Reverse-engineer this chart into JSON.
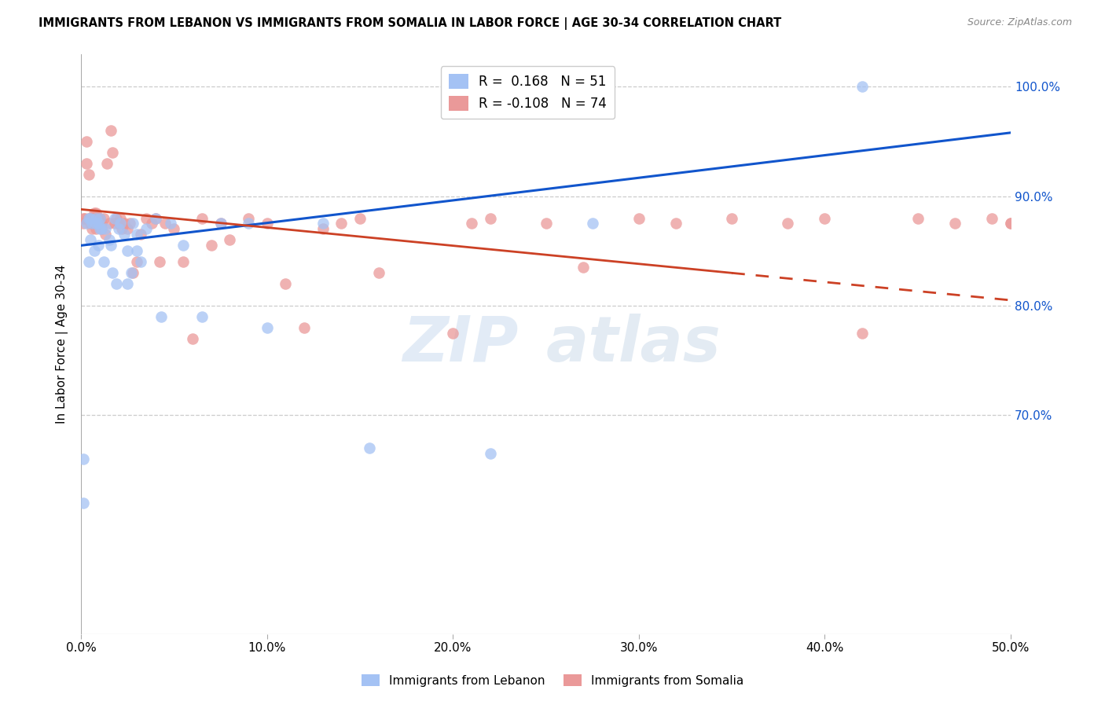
{
  "title": "IMMIGRANTS FROM LEBANON VS IMMIGRANTS FROM SOMALIA IN LABOR FORCE | AGE 30-34 CORRELATION CHART",
  "source": "Source: ZipAtlas.com",
  "ylabel": "In Labor Force | Age 30-34",
  "xlim": [
    0.0,
    0.5
  ],
  "ylim": [
    0.5,
    1.03
  ],
  "yticks": [
    0.6,
    0.7,
    0.8,
    0.9,
    1.0
  ],
  "ytick_labels": [
    "",
    "",
    "80.0%",
    "90.0%",
    "100.0%"
  ],
  "ytick_labels_right": [
    "",
    "70.0%",
    "80.0%",
    "90.0%",
    "100.0%"
  ],
  "xticks": [
    0.0,
    0.1,
    0.2,
    0.3,
    0.4,
    0.5
  ],
  "xtick_labels": [
    "0.0%",
    "10.0%",
    "20.0%",
    "30.0%",
    "40.0%",
    "50.0%"
  ],
  "legend_blue_r": "0.168",
  "legend_blue_n": "51",
  "legend_pink_r": "-0.108",
  "legend_pink_n": "74",
  "blue_color": "#a4c2f4",
  "pink_color": "#ea9999",
  "trend_blue_color": "#1155cc",
  "trend_pink_color": "#cc4125",
  "grid_color": "#cccccc",
  "watermark_zip": "ZIP",
  "watermark_atlas": "atlas",
  "blue_x": [
    0.001,
    0.001,
    0.003,
    0.004,
    0.004,
    0.005,
    0.005,
    0.006,
    0.007,
    0.008,
    0.008,
    0.009,
    0.009,
    0.01,
    0.01,
    0.011,
    0.012,
    0.013,
    0.015,
    0.016,
    0.017,
    0.018,
    0.019,
    0.02,
    0.021,
    0.023,
    0.025,
    0.025,
    0.027,
    0.028,
    0.03,
    0.03,
    0.032,
    0.035,
    0.04,
    0.043,
    0.048,
    0.055,
    0.065,
    0.075,
    0.09,
    0.1,
    0.13,
    0.155,
    0.22,
    0.275,
    0.42
  ],
  "blue_y": [
    0.62,
    0.66,
    0.875,
    0.84,
    0.88,
    0.86,
    0.88,
    0.875,
    0.85,
    0.875,
    0.88,
    0.855,
    0.875,
    0.87,
    0.88,
    0.87,
    0.84,
    0.87,
    0.86,
    0.855,
    0.83,
    0.88,
    0.82,
    0.87,
    0.875,
    0.865,
    0.85,
    0.82,
    0.83,
    0.875,
    0.85,
    0.865,
    0.84,
    0.87,
    0.88,
    0.79,
    0.875,
    0.855,
    0.79,
    0.875,
    0.875,
    0.78,
    0.875,
    0.67,
    0.665,
    0.875,
    1.0
  ],
  "pink_x": [
    0.001,
    0.001,
    0.002,
    0.003,
    0.003,
    0.004,
    0.004,
    0.005,
    0.005,
    0.006,
    0.006,
    0.007,
    0.007,
    0.008,
    0.008,
    0.009,
    0.009,
    0.01,
    0.01,
    0.011,
    0.011,
    0.012,
    0.013,
    0.014,
    0.015,
    0.016,
    0.017,
    0.018,
    0.019,
    0.02,
    0.021,
    0.022,
    0.023,
    0.025,
    0.026,
    0.028,
    0.03,
    0.032,
    0.035,
    0.038,
    0.04,
    0.042,
    0.045,
    0.05,
    0.055,
    0.06,
    0.065,
    0.07,
    0.075,
    0.08,
    0.09,
    0.1,
    0.11,
    0.12,
    0.13,
    0.14,
    0.15,
    0.16,
    0.2,
    0.21,
    0.22,
    0.25,
    0.27,
    0.3,
    0.32,
    0.35,
    0.38,
    0.4,
    0.42,
    0.45,
    0.47,
    0.49,
    0.5,
    0.5
  ],
  "pink_y": [
    0.875,
    0.88,
    0.88,
    0.95,
    0.93,
    0.88,
    0.92,
    0.875,
    0.88,
    0.87,
    0.88,
    0.875,
    0.885,
    0.87,
    0.885,
    0.875,
    0.88,
    0.875,
    0.88,
    0.875,
    0.87,
    0.88,
    0.865,
    0.93,
    0.875,
    0.96,
    0.94,
    0.875,
    0.88,
    0.875,
    0.88,
    0.87,
    0.875,
    0.87,
    0.875,
    0.83,
    0.84,
    0.865,
    0.88,
    0.875,
    0.88,
    0.84,
    0.875,
    0.87,
    0.84,
    0.77,
    0.88,
    0.855,
    0.875,
    0.86,
    0.88,
    0.875,
    0.82,
    0.78,
    0.87,
    0.875,
    0.88,
    0.83,
    0.775,
    0.875,
    0.88,
    0.875,
    0.835,
    0.88,
    0.875,
    0.88,
    0.875,
    0.88,
    0.775,
    0.88,
    0.875,
    0.88,
    0.875,
    0.875
  ],
  "trend_blue_x0": 0.0,
  "trend_blue_x1": 0.5,
  "trend_blue_y0": 0.855,
  "trend_blue_y1": 0.958,
  "trend_pink_x0": 0.0,
  "trend_pink_x1": 0.5,
  "trend_pink_y0": 0.888,
  "trend_pink_y1": 0.805,
  "trend_pink_solid_end": 0.35
}
